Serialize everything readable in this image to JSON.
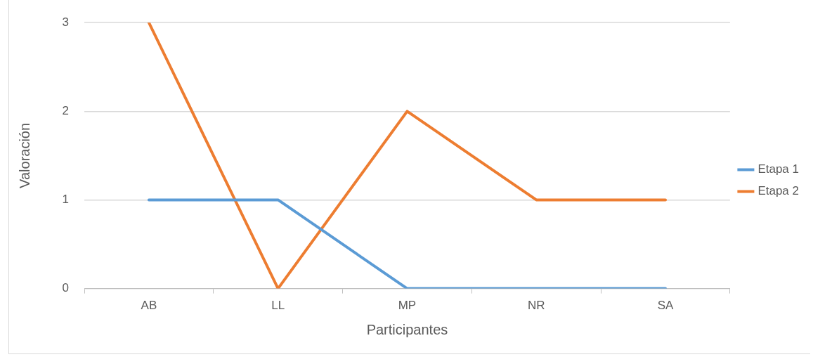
{
  "chart_data": {
    "type": "line",
    "xlabel": "Participantes",
    "ylabel": "Valoración",
    "categories": [
      "AB",
      "LL",
      "MP",
      "NR",
      "SA"
    ],
    "series": [
      {
        "name": "Etapa 1",
        "color": "#5b9bd5",
        "values": [
          1,
          1,
          0,
          0,
          0
        ]
      },
      {
        "name": "Etapa 2",
        "color": "#ed7d31",
        "values": [
          3,
          0,
          2,
          1,
          1
        ]
      }
    ],
    "ylim": [
      0,
      3
    ],
    "yticks": [
      0,
      1,
      2,
      3
    ],
    "grid": "y",
    "legend": "right",
    "marker": "none",
    "line_style": "solid"
  }
}
